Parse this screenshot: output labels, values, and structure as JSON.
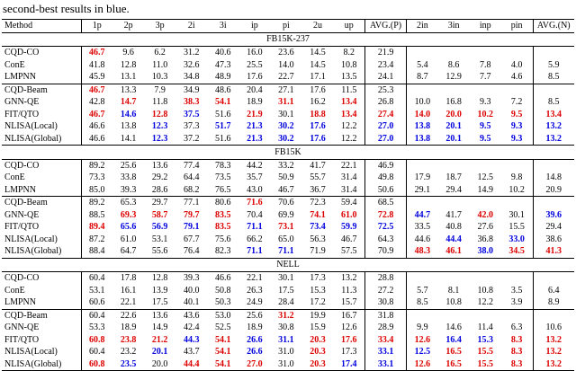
{
  "caption": "second-best results in blue.",
  "colors": {
    "best": "#dd0000",
    "second": "#0000dd"
  },
  "table": {
    "columns": [
      "Method",
      "1p",
      "2p",
      "3p",
      "2i",
      "3i",
      "ip",
      "pi",
      "2u",
      "up",
      "AVG.(P)",
      "2in",
      "3in",
      "inp",
      "pin",
      "AVG.(N)"
    ],
    "sections": [
      {
        "title": "FB15K-237",
        "groups": [
          [
            {
              "m": "CQD-CO",
              "v": [
                "46.7",
                "9.6",
                "6.2",
                "31.2",
                "40.6",
                "16.0",
                "23.6",
                "14.5",
                "8.2",
                "21.9",
                "",
                "",
                "",
                "",
                ""
              ],
              "r": [
                0
              ],
              "b": []
            },
            {
              "m": "ConE",
              "v": [
                "41.8",
                "12.8",
                "11.0",
                "32.6",
                "47.3",
                "25.5",
                "14.0",
                "14.5",
                "10.8",
                "23.4",
                "5.4",
                "8.6",
                "7.8",
                "4.0",
                "5.9"
              ],
              "r": [],
              "b": []
            },
            {
              "m": "LMPNN",
              "v": [
                "45.9",
                "13.1",
                "10.3",
                "34.8",
                "48.9",
                "17.6",
                "22.7",
                "17.1",
                "13.5",
                "24.1",
                "8.7",
                "12.9",
                "7.7",
                "4.6",
                "8.5"
              ],
              "r": [],
              "b": []
            }
          ],
          [
            {
              "m": "CQD-Beam",
              "v": [
                "46.7",
                "13.3",
                "7.9",
                "34.9",
                "48.6",
                "20.4",
                "27.1",
                "17.6",
                "11.5",
                "25.3",
                "",
                "",
                "",
                "",
                ""
              ],
              "r": [
                0
              ],
              "b": []
            },
            {
              "m": "GNN-QE",
              "v": [
                "42.8",
                "14.7",
                "11.8",
                "38.3",
                "54.1",
                "18.9",
                "31.1",
                "16.2",
                "13.4",
                "26.8",
                "10.0",
                "16.8",
                "9.3",
                "7.2",
                "8.5"
              ],
              "r": [
                1,
                3,
                4,
                6,
                8
              ],
              "b": []
            },
            {
              "m": "FIT/QTO",
              "v": [
                "46.7",
                "14.6",
                "12.8",
                "37.5",
                "51.6",
                "21.9",
                "30.1",
                "18.8",
                "13.4",
                "27.4",
                "14.0",
                "20.0",
                "10.2",
                "9.5",
                "13.4"
              ],
              "r": [
                0,
                2,
                5,
                7,
                8,
                9,
                10,
                11,
                12,
                13,
                14
              ],
              "b": [
                1,
                3
              ]
            },
            {
              "m": "NLISA(Local)",
              "v": [
                "46.6",
                "13.8",
                "12.3",
                "37.3",
                "51.7",
                "21.3",
                "30.2",
                "17.6",
                "12.2",
                "27.0",
                "13.8",
                "20.1",
                "9.5",
                "9.3",
                "13.2"
              ],
              "r": [],
              "b": [
                2,
                4,
                5,
                6,
                7,
                9,
                10,
                11,
                12,
                13,
                14
              ]
            },
            {
              "m": "NLISA(Global)",
              "v": [
                "46.6",
                "14.1",
                "12.3",
                "37.2",
                "51.6",
                "21.3",
                "30.2",
                "17.6",
                "12.2",
                "27.0",
                "13.8",
                "20.1",
                "9.5",
                "9.3",
                "13.2"
              ],
              "r": [],
              "b": [
                2,
                5,
                6,
                7,
                9,
                10,
                11,
                12,
                13,
                14
              ]
            }
          ]
        ]
      },
      {
        "title": "FB15K",
        "groups": [
          [
            {
              "m": "CQD-CO",
              "v": [
                "89.2",
                "25.6",
                "13.6",
                "77.4",
                "78.3",
                "44.2",
                "33.2",
                "41.7",
                "22.1",
                "46.9",
                "",
                "",
                "",
                "",
                ""
              ],
              "r": [],
              "b": []
            },
            {
              "m": "ConE",
              "v": [
                "73.3",
                "33.8",
                "29.2",
                "64.4",
                "73.5",
                "35.7",
                "50.9",
                "55.7",
                "31.4",
                "49.8",
                "17.9",
                "18.7",
                "12.5",
                "9.8",
                "14.8"
              ],
              "r": [],
              "b": []
            },
            {
              "m": "LMPNN",
              "v": [
                "85.0",
                "39.3",
                "28.6",
                "68.2",
                "76.5",
                "43.0",
                "46.7",
                "36.7",
                "31.4",
                "50.6",
                "29.1",
                "29.4",
                "14.9",
                "10.2",
                "20.9"
              ],
              "r": [],
              "b": []
            }
          ],
          [
            {
              "m": "CQD-Beam",
              "v": [
                "89.2",
                "65.3",
                "29.7",
                "77.1",
                "80.6",
                "71.6",
                "70.6",
                "72.3",
                "59.4",
                "68.5",
                "",
                "",
                "",
                "",
                ""
              ],
              "r": [
                5
              ],
              "b": []
            },
            {
              "m": "GNN-QE",
              "v": [
                "88.5",
                "69.3",
                "58.7",
                "79.7",
                "83.5",
                "70.4",
                "69.9",
                "74.1",
                "61.0",
                "72.8",
                "44.7",
                "41.7",
                "42.0",
                "30.1",
                "39.6"
              ],
              "r": [
                1,
                2,
                3,
                4,
                7,
                8,
                9,
                12
              ],
              "b": [
                10,
                14
              ]
            },
            {
              "m": "FIT/QTO",
              "v": [
                "89.4",
                "65.6",
                "56.9",
                "79.1",
                "83.5",
                "71.1",
                "73.1",
                "73.4",
                "59.9",
                "72.5",
                "33.5",
                "40.8",
                "27.6",
                "15.5",
                "29.4"
              ],
              "r": [
                0,
                4,
                6
              ],
              "b": [
                1,
                2,
                3,
                5,
                7,
                8,
                9
              ]
            },
            {
              "m": "NLISA(Local)",
              "v": [
                "87.2",
                "61.0",
                "53.1",
                "67.7",
                "75.6",
                "66.2",
                "65.0",
                "56.3",
                "46.7",
                "64.3",
                "44.6",
                "44.4",
                "36.8",
                "33.0",
                "38.6"
              ],
              "r": [],
              "b": [
                11,
                13
              ]
            },
            {
              "m": "NLISA(Global)",
              "v": [
                "88.4",
                "64.7",
                "55.6",
                "76.4",
                "82.3",
                "71.1",
                "71.1",
                "71.9",
                "57.5",
                "70.9",
                "48.3",
                "46.1",
                "38.0",
                "34.5",
                "41.3"
              ],
              "r": [
                10,
                11,
                13,
                14
              ],
              "b": [
                5,
                6,
                12
              ]
            }
          ]
        ]
      },
      {
        "title": "NELL",
        "groups": [
          [
            {
              "m": "CQD-CO",
              "v": [
                "60.4",
                "17.8",
                "12.8",
                "39.3",
                "46.6",
                "22.1",
                "30.1",
                "17.3",
                "13.2",
                "28.8",
                "",
                "",
                "",
                "",
                ""
              ],
              "r": [],
              "b": []
            },
            {
              "m": "ConE",
              "v": [
                "53.1",
                "16.1",
                "13.9",
                "40.0",
                "50.8",
                "26.3",
                "17.5",
                "15.3",
                "11.3",
                "27.2",
                "5.7",
                "8.1",
                "10.8",
                "3.5",
                "6.4"
              ],
              "r": [],
              "b": []
            },
            {
              "m": "LMPNN",
              "v": [
                "60.6",
                "22.1",
                "17.5",
                "40.1",
                "50.3",
                "24.9",
                "28.4",
                "17.2",
                "15.7",
                "30.8",
                "8.5",
                "10.8",
                "12.2",
                "3.9",
                "8.9"
              ],
              "r": [],
              "b": []
            }
          ],
          [
            {
              "m": "CQD-Beam",
              "v": [
                "60.4",
                "22.6",
                "13.6",
                "43.6",
                "53.0",
                "25.6",
                "31.2",
                "19.9",
                "16.7",
                "31.8",
                "",
                "",
                "",
                "",
                ""
              ],
              "r": [
                6
              ],
              "b": []
            },
            {
              "m": "GNN-QE",
              "v": [
                "53.3",
                "18.9",
                "14.9",
                "42.4",
                "52.5",
                "18.9",
                "30.8",
                "15.9",
                "12.6",
                "28.9",
                "9.9",
                "14.6",
                "11.4",
                "6.3",
                "10.6"
              ],
              "r": [],
              "b": []
            },
            {
              "m": "FIT/QTO",
              "v": [
                "60.8",
                "23.8",
                "21.2",
                "44.3",
                "54.1",
                "26.6",
                "31.1",
                "20.3",
                "17.6",
                "33.4",
                "12.6",
                "16.4",
                "15.3",
                "8.3",
                "13.2"
              ],
              "r": [
                0,
                1,
                2,
                4,
                7,
                8,
                9,
                10,
                13,
                14
              ],
              "b": [
                3,
                5,
                6,
                11,
                12
              ]
            },
            {
              "m": "NLISA(Local)",
              "v": [
                "60.4",
                "23.2",
                "20.1",
                "43.7",
                "54.1",
                "26.6",
                "31.0",
                "20.3",
                "17.3",
                "33.1",
                "12.5",
                "16.5",
                "15.5",
                "8.3",
                "13.2"
              ],
              "r": [
                4,
                7,
                11,
                12,
                13,
                14
              ],
              "b": [
                2,
                5,
                9,
                10
              ]
            },
            {
              "m": "NLISA(Global)",
              "v": [
                "60.8",
                "23.5",
                "20.0",
                "44.4",
                "54.1",
                "27.0",
                "31.0",
                "20.3",
                "17.4",
                "33.1",
                "12.6",
                "16.5",
                "15.5",
                "8.3",
                "13.2"
              ],
              "r": [
                0,
                3,
                4,
                5,
                7,
                10,
                11,
                12,
                13,
                14
              ],
              "b": [
                1,
                8,
                9
              ]
            }
          ]
        ]
      }
    ]
  }
}
